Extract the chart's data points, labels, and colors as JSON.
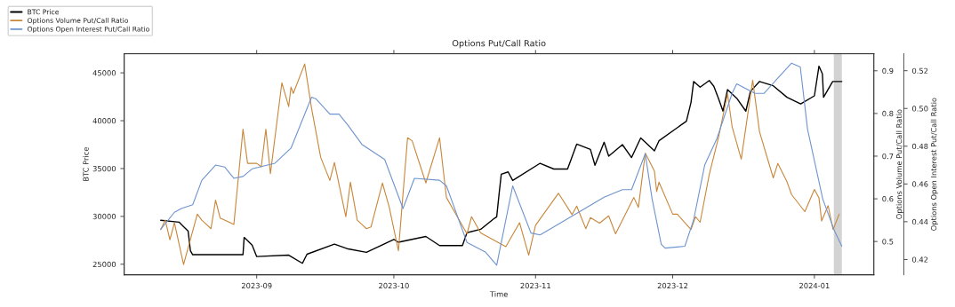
{
  "chart_data": {
    "type": "line",
    "title": "Options Put/Call Ratio",
    "xlabel": "Time",
    "ylabel": "BTC Price",
    "y2label": "Options Volume Put/Call Ratio",
    "y3label": "Options Open Interest Put/Call Ratio",
    "legend": "top left",
    "marker": "none",
    "line_style": "solid",
    "xlim": [
      "2023-08-03",
      "2024-01-14"
    ],
    "xticks": [
      "2023-09",
      "2023-10",
      "2023-11",
      "2023-12",
      "2024-01"
    ],
    "ylim": [
      23900,
      47000
    ],
    "yticks": [
      25000,
      30000,
      35000,
      40000,
      45000
    ],
    "y2lim": [
      0.422,
      0.94
    ],
    "y2ticks": [
      0.5,
      0.6,
      0.7,
      0.8,
      0.9
    ],
    "y3lim": [
      0.4119,
      0.529
    ],
    "y3ticks": [
      {
        "value": 0.42,
        "label": "0.42"
      },
      {
        "value": 0.44,
        "label": "0.44"
      },
      {
        "value": 0.46,
        "label": "0.46"
      },
      {
        "value": 0.48,
        "label": "0.48"
      },
      {
        "value": 0.5,
        "label": "0.50"
      },
      {
        "value": 0.52,
        "label": "0.52"
      }
    ],
    "bands": [
      {
        "axis": "x",
        "from": "2024-01-05T06:00",
        "to": "2024-01-07",
        "color": "#d3d3d3"
      }
    ],
    "series": [
      {
        "name": "BTC Price",
        "color": "#000000",
        "axis": "y",
        "x": [
          "2023-08-11",
          "2023-08-15",
          "2023-08-17",
          "2023-08-17T12:00",
          "2023-08-18",
          "2023-08-29",
          "2023-08-29T06:00",
          "2023-08-31",
          "2023-09-01",
          "2023-09-08",
          "2023-09-11",
          "2023-09-12",
          "2023-09-18",
          "2023-09-21",
          "2023-09-25",
          "2023-10-01",
          "2023-10-02",
          "2023-10-08",
          "2023-10-11",
          "2023-10-16",
          "2023-10-17",
          "2023-10-20",
          "2023-10-23",
          "2023-10-23T12:00",
          "2023-10-24",
          "2023-10-24T12:00",
          "2023-10-26",
          "2023-10-27",
          "2023-11-02",
          "2023-11-05",
          "2023-11-08",
          "2023-11-10",
          "2023-11-13",
          "2023-11-14",
          "2023-11-16",
          "2023-11-17",
          "2023-11-20",
          "2023-11-22",
          "2023-11-24",
          "2023-11-25",
          "2023-11-27",
          "2023-11-28",
          "2023-12-04",
          "2023-12-05",
          "2023-12-05T14:00",
          "2023-12-07",
          "2023-12-09",
          "2023-12-10",
          "2023-12-11",
          "2023-12-12",
          "2023-12-13",
          "2023-12-15",
          "2023-12-17",
          "2023-12-18",
          "2023-12-20",
          "2023-12-23",
          "2023-12-26",
          "2023-12-29",
          "2024-01-01",
          "2024-01-02",
          "2024-01-02T18:00",
          "2024-01-03",
          "2024-01-05",
          "2024-01-07"
        ],
        "values": [
          29600,
          29400,
          28450,
          26400,
          26000,
          26000,
          27800,
          27000,
          25800,
          25950,
          25100,
          26050,
          27100,
          26600,
          26250,
          27600,
          27300,
          27900,
          26950,
          26950,
          28300,
          28650,
          29800,
          29950,
          32250,
          34400,
          34650,
          33750,
          35550,
          34950,
          34950,
          37550,
          37000,
          35350,
          37750,
          36300,
          37500,
          36150,
          38200,
          37750,
          36850,
          37900,
          39950,
          41900,
          44100,
          43500,
          44200,
          43600,
          42350,
          41000,
          43250,
          42350,
          41000,
          43050,
          44100,
          43650,
          42450,
          41750,
          42600,
          45700,
          44900,
          42450,
          44100,
          44100
        ]
      },
      {
        "name": "Options Volume Put/Call Ratio",
        "color": "#c8873a",
        "axis": "y2",
        "x": [
          "2023-08-11",
          "2023-08-12",
          "2023-08-13",
          "2023-08-14",
          "2023-08-16",
          "2023-08-19",
          "2023-08-20",
          "2023-08-22",
          "2023-08-23",
          "2023-08-24",
          "2023-08-27",
          "2023-08-29",
          "2023-08-30",
          "2023-09-01",
          "2023-09-02",
          "2023-09-03",
          "2023-09-04",
          "2023-09-06T12:00",
          "2023-09-08",
          "2023-09-08T12:00",
          "2023-09-09",
          "2023-09-11T12:00",
          "2023-09-13",
          "2023-09-15",
          "2023-09-17",
          "2023-09-18",
          "2023-09-20T12:00",
          "2023-09-21T12:00",
          "2023-09-23",
          "2023-09-25",
          "2023-09-26",
          "2023-09-28T12:00",
          "2023-09-30",
          "2023-10-02",
          "2023-10-04",
          "2023-10-05",
          "2023-10-08",
          "2023-10-11",
          "2023-10-12T12:00",
          "2023-10-17",
          "2023-10-18",
          "2023-10-20",
          "2023-10-25T12:00",
          "2023-10-28T12:00",
          "2023-10-30T12:00",
          "2023-11-01",
          "2023-11-06",
          "2023-11-09",
          "2023-11-10",
          "2023-11-12",
          "2023-11-13",
          "2023-11-15",
          "2023-11-17",
          "2023-11-18T12:00",
          "2023-11-22T12:00",
          "2023-11-23T12:00",
          "2023-11-25",
          "2023-11-27",
          "2023-11-27T12:00",
          "2023-11-28",
          "2023-12-01",
          "2023-12-02",
          "2023-12-05",
          "2023-12-06",
          "2023-12-07",
          "2023-12-09",
          "2023-12-11",
          "2023-12-13",
          "2023-12-14",
          "2023-12-16",
          "2023-12-18T12:00",
          "2023-12-20",
          "2023-12-23",
          "2023-12-24",
          "2023-12-26",
          "2023-12-27",
          "2023-12-29T22:00",
          "2024-01-01",
          "2024-01-02",
          "2024-01-02T14:00",
          "2024-01-04",
          "2024-01-05T02:00",
          "2024-01-06T10:00"
        ],
        "values": [
          0.528,
          0.55,
          0.504,
          0.544,
          0.446,
          0.564,
          0.55,
          0.53,
          0.597,
          0.555,
          0.54,
          0.763,
          0.683,
          0.683,
          0.675,
          0.763,
          0.659,
          0.872,
          0.816,
          0.862,
          0.847,
          0.916,
          0.812,
          0.697,
          0.643,
          0.685,
          0.558,
          0.639,
          0.55,
          0.53,
          0.534,
          0.637,
          0.58,
          0.478,
          0.743,
          0.736,
          0.637,
          0.743,
          0.603,
          0.518,
          0.558,
          0.52,
          0.488,
          0.544,
          0.468,
          0.538,
          0.613,
          0.563,
          0.583,
          0.53,
          0.556,
          0.543,
          0.56,
          0.518,
          0.603,
          0.58,
          0.707,
          0.665,
          0.617,
          0.639,
          0.564,
          0.564,
          0.528,
          0.558,
          0.545,
          0.657,
          0.743,
          0.846,
          0.769,
          0.693,
          0.878,
          0.757,
          0.649,
          0.683,
          0.64,
          0.61,
          0.57,
          0.622,
          0.602,
          0.548,
          0.584,
          0.528,
          0.564
        ]
      },
      {
        "name": "Options Open Interest Put/Call Ratio",
        "color": "#6f94cf",
        "axis": "y3",
        "x": [
          "2023-08-11",
          "2023-08-14",
          "2023-08-15T12:00",
          "2023-08-18",
          "2023-08-20",
          "2023-08-23",
          "2023-08-25",
          "2023-08-27",
          "2023-08-29",
          "2023-08-31",
          "2023-09-05",
          "2023-09-08T12:00",
          "2023-09-13",
          "2023-09-14",
          "2023-09-17",
          "2023-09-19",
          "2023-09-21",
          "2023-09-24",
          "2023-09-29",
          "2023-10-03",
          "2023-10-05T12:00",
          "2023-10-11",
          "2023-10-12T12:00",
          "2023-10-17",
          "2023-10-21",
          "2023-10-23T12:00",
          "2023-10-27",
          "2023-10-31",
          "2023-11-02",
          "2023-11-09",
          "2023-11-16",
          "2023-11-20",
          "2023-11-22",
          "2023-11-25",
          "2023-11-26T12:00",
          "2023-11-28T12:00",
          "2023-11-29T08:00",
          "2023-12-03T16:00",
          "2023-12-05T14:00",
          "2023-12-08",
          "2023-12-10T16:00",
          "2023-12-14",
          "2023-12-15",
          "2023-12-19",
          "2023-12-21",
          "2023-12-23T14:00",
          "2023-12-27",
          "2023-12-28T22:00",
          "2023-12-30T12:00",
          "2024-01-02T20:00",
          "2024-01-05T10:00",
          "2024-01-07"
        ],
        "values": [
          0.436,
          0.445,
          0.447,
          0.449,
          0.462,
          0.47,
          0.469,
          0.463,
          0.464,
          0.468,
          0.471,
          0.479,
          0.506,
          0.505,
          0.497,
          0.497,
          0.491,
          0.481,
          0.473,
          0.447,
          0.463,
          0.462,
          0.459,
          0.429,
          0.424,
          0.417,
          0.459,
          0.434,
          0.433,
          0.443,
          0.453,
          0.457,
          0.457,
          0.476,
          0.452,
          0.428,
          0.426,
          0.427,
          0.441,
          0.47,
          0.484,
          0.508,
          0.513,
          0.508,
          0.508,
          0.515,
          0.524,
          0.522,
          0.489,
          0.452,
          0.435,
          0.427
        ]
      }
    ]
  }
}
